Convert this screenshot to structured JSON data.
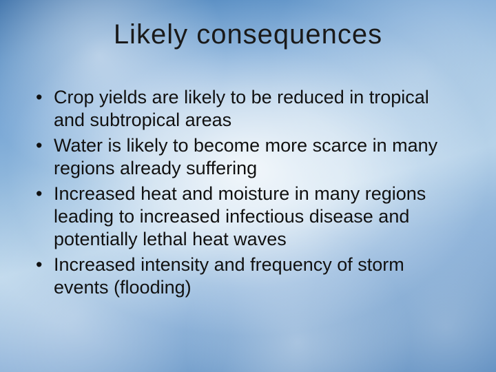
{
  "slide": {
    "title": "Likely consequences",
    "title_color": "#1a1a1a",
    "title_fontsize": 40,
    "bullet_color": "#111111",
    "bullet_fontsize": 27,
    "bullet_lineheight": 1.22,
    "bullets": [
      "Crop yields are likely to be reduced in tropical and subtropical areas",
      "Water is likely to become more scarce in many regions already suffering",
      "Increased heat and moisture in many regions leading to increased infectious disease and potentially lethal heat waves",
      "Increased intensity and frequency of storm events (flooding)"
    ],
    "background": {
      "sky_top": "#3a6fa8",
      "sky_mid": "#9bc0e0",
      "sky_bottom": "#4a7fb8",
      "cloud_highlight": "#ffffff"
    }
  }
}
